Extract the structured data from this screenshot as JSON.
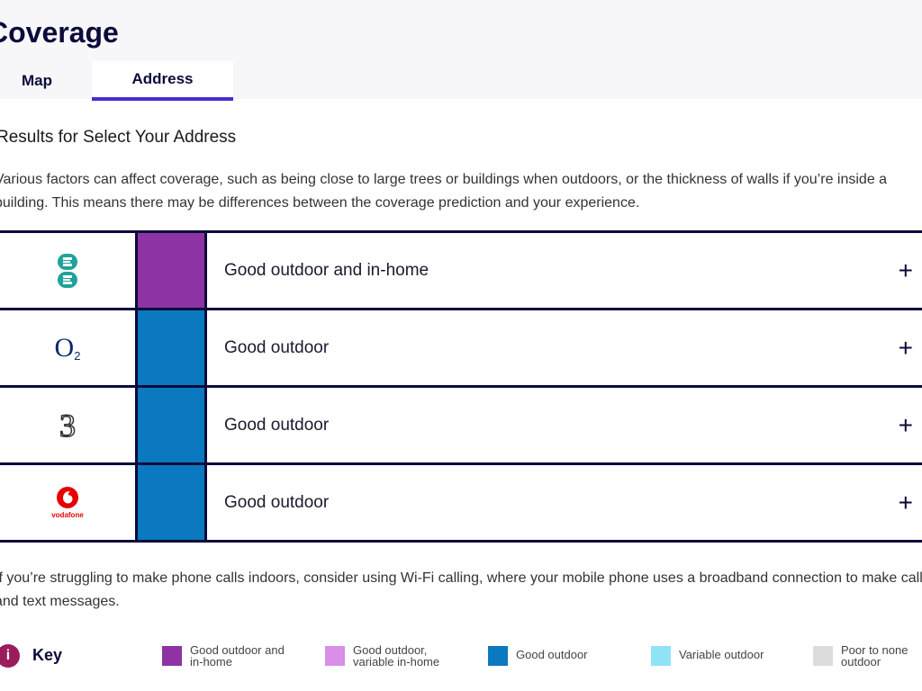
{
  "page": {
    "title": "Coverage"
  },
  "tabs": [
    {
      "label": "Map",
      "active": false
    },
    {
      "label": "Address",
      "active": true
    }
  ],
  "results": {
    "heading": "Results for Select Your Address",
    "intro": "Various factors can affect coverage, such as being close to large trees or buildings when outdoors, or the thickness of walls if you’re inside a building. This means there may be differences between the coverage prediction and your experience."
  },
  "operators": [
    {
      "logo": "ee-logo",
      "coverage_label": "Good outdoor and in-home",
      "color": "#8e33a3",
      "expand_label": "+"
    },
    {
      "logo": "o2-logo",
      "logo_text": "O",
      "logo_sub": "2",
      "coverage_label": "Good outdoor",
      "color": "#0a79bf",
      "expand_label": "+"
    },
    {
      "logo": "three-logo",
      "logo_text": "3",
      "coverage_label": "Good outdoor",
      "color": "#0a79bf",
      "expand_label": "+"
    },
    {
      "logo": "vodafone-logo",
      "logo_text": "vodafone",
      "coverage_label": "Good outdoor",
      "color": "#0a79bf",
      "expand_label": "+"
    }
  ],
  "note": "If you’re struggling to make phone calls indoors, consider using Wi-Fi calling, where your mobile phone uses a broadband connection to make calls and text messages.",
  "key": {
    "icon": "info-icon",
    "icon_text": "i",
    "title": "Key",
    "items": [
      {
        "label": "Good outdoor and in-home",
        "color": "#8e33a3"
      },
      {
        "label": "Good outdoor, variable in-home",
        "color": "#d98ee8"
      },
      {
        "label": "Good outdoor",
        "color": "#0a79bf"
      },
      {
        "label": "Variable outdoor",
        "color": "#8ee3f7"
      },
      {
        "label": "Poor to none outdoor",
        "color": "#dcdcdc"
      }
    ]
  }
}
